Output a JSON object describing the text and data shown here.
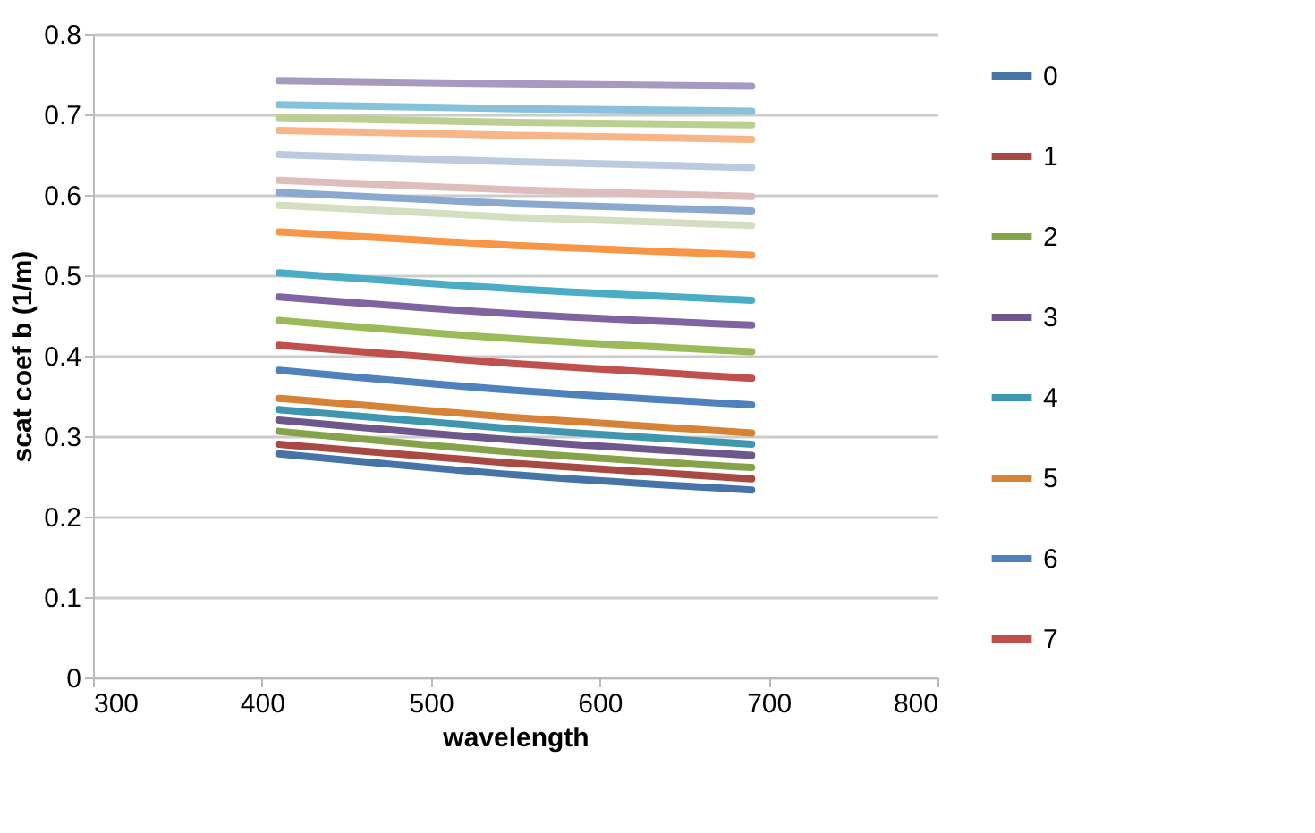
{
  "chart_data": {
    "type": "line",
    "xlabel": "wavelength",
    "ylabel": "scat coef b (1/m)",
    "xlim": [
      300,
      800
    ],
    "xticks": [
      300,
      400,
      500,
      600,
      700,
      800
    ],
    "ylim": [
      0,
      0.8
    ],
    "yticks": [
      0,
      0.1,
      0.2,
      0.3,
      0.4,
      0.5,
      0.6,
      0.7,
      0.8
    ],
    "grid": "y",
    "legend": "right",
    "marker": "none",
    "line_style": "solid",
    "x": [
      410,
      550,
      690
    ],
    "series": [
      {
        "name": "0",
        "color": "#4674a8",
        "values": [
          0.278,
          0.252,
          0.233
        ]
      },
      {
        "name": "1",
        "color": "#a84944",
        "values": [
          0.29,
          0.266,
          0.247
        ]
      },
      {
        "name": "2",
        "color": "#86a24a",
        "values": [
          0.306,
          0.28,
          0.261
        ]
      },
      {
        "name": "3",
        "color": "#6e578c",
        "values": [
          0.32,
          0.295,
          0.276
        ]
      },
      {
        "name": "4",
        "color": "#3f97af",
        "values": [
          0.333,
          0.309,
          0.29
        ]
      },
      {
        "name": "5",
        "color": "#d68237",
        "values": [
          0.347,
          0.323,
          0.304
        ]
      },
      {
        "name": "6",
        "color": "#4f81bd",
        "values": [
          0.382,
          0.357,
          0.339
        ]
      },
      {
        "name": "7",
        "color": "#c0504d",
        "values": [
          0.413,
          0.39,
          0.372
        ]
      },
      {
        "color": "#9bbb59",
        "values": [
          0.444,
          0.421,
          0.405
        ]
      },
      {
        "color": "#8064a2",
        "values": [
          0.473,
          0.452,
          0.438
        ]
      },
      {
        "color": "#4bacc6",
        "values": [
          0.503,
          0.483,
          0.469
        ]
      },
      {
        "color": "#f79646",
        "values": [
          0.554,
          0.537,
          0.525
        ]
      },
      {
        "color": "#8aa8d0",
        "values": [
          0.603,
          0.589,
          0.58
        ]
      },
      {
        "color": "#dfbdbd",
        "values": [
          0.618,
          0.606,
          0.598
        ]
      },
      {
        "color": "#d3dfc0",
        "values": [
          0.587,
          0.572,
          0.562
        ]
      },
      {
        "color": "#a79ac1",
        "values": [
          0.742,
          0.738,
          0.735
        ]
      },
      {
        "color": "#86c3da",
        "values": [
          0.712,
          0.707,
          0.704
        ]
      },
      {
        "color": "#f8b587",
        "values": [
          0.68,
          0.674,
          0.669
        ]
      },
      {
        "color": "#bccadf",
        "values": [
          0.65,
          0.641,
          0.634
        ]
      },
      {
        "color": "#bacf90",
        "values": [
          0.696,
          0.69,
          0.687
        ]
      }
    ]
  }
}
